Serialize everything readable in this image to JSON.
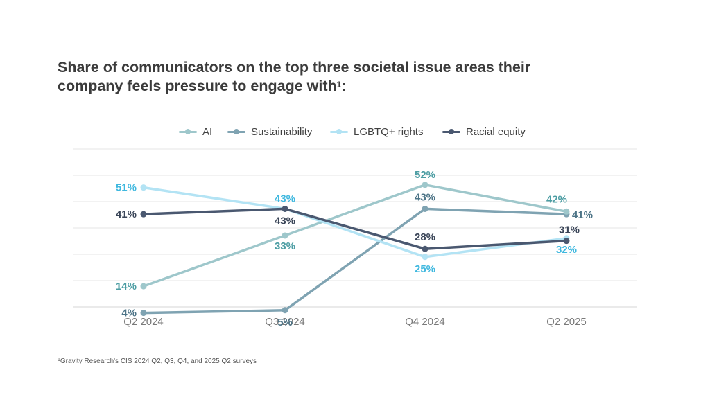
{
  "title": "Share of communicators on the top three societal issue areas their company feels pressure to engage with",
  "title_superscript": "1",
  "footnote_superscript": "1",
  "footnote": "Gravity Research's CIS 2024 Q2, Q3, Q4, and 2025 Q2 surveys",
  "chart_data": {
    "type": "line",
    "title": "Share of communicators on the top three societal issue areas their company feels pressure to engage with",
    "legend_position": "top-center",
    "grid": true,
    "ylim": [
      0,
      60
    ],
    "x": [
      "Q2 2024",
      "Q3 2024",
      "Q4 2024",
      "Q2 2025"
    ],
    "series": [
      {
        "name": "AI",
        "color": "#9ec7cb",
        "label_color": "#4c9da3",
        "values": [
          14,
          33,
          52,
          42
        ],
        "labels": [
          "14%",
          "33%",
          "52%",
          "42%"
        ]
      },
      {
        "name": "Sustainability",
        "color": "#7fa3b2",
        "label_color": "#4d7487",
        "values": [
          4,
          5,
          43,
          41
        ],
        "labels": [
          "4%",
          "5%",
          "43%",
          "41%"
        ]
      },
      {
        "name": "LGBTQ+ rights",
        "color": "#b3e3f4",
        "label_color": "#3fb8df",
        "values": [
          51,
          43,
          25,
          32
        ],
        "labels": [
          "51%",
          "43%",
          "25%",
          "32%"
        ]
      },
      {
        "name": "Racial equity",
        "color": "#4a5870",
        "label_color": "#3a4558",
        "values": [
          41,
          43,
          28,
          31
        ],
        "labels": [
          "41%",
          "43%",
          "28%",
          "31%"
        ]
      }
    ]
  }
}
